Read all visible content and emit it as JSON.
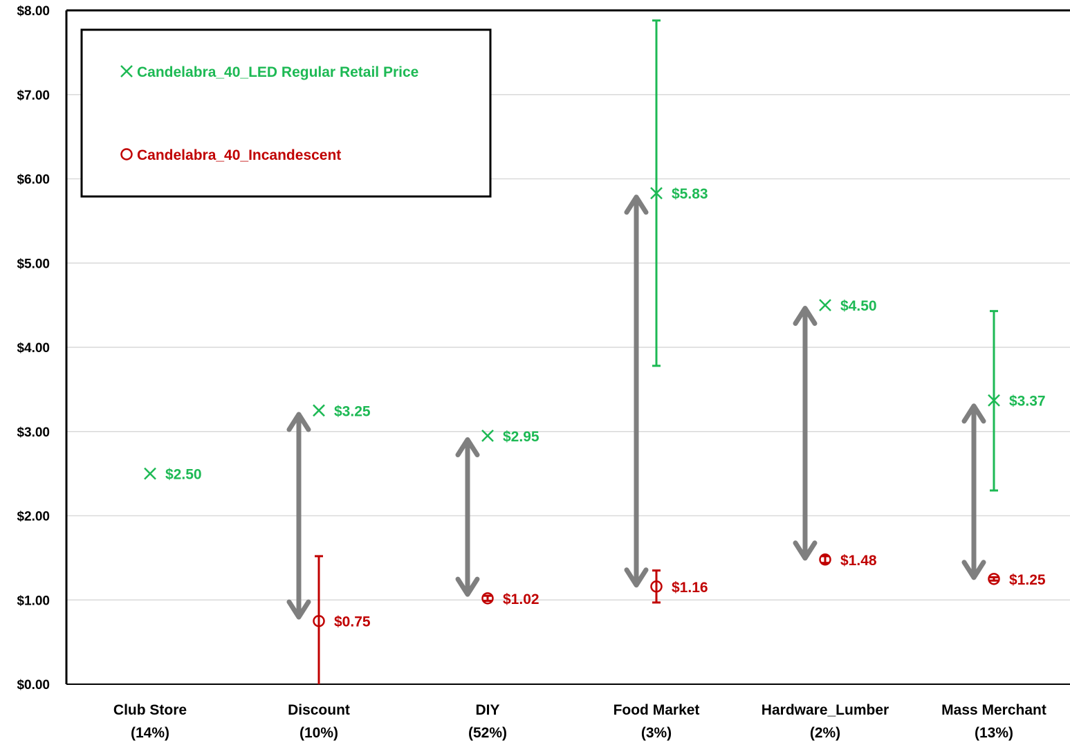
{
  "chart_data": {
    "type": "scatter",
    "ylim": [
      0,
      8
    ],
    "y_ticks": [
      "$0.00",
      "$1.00",
      "$2.00",
      "$3.00",
      "$4.00",
      "$5.00",
      "$6.00",
      "$7.00",
      "$8.00"
    ],
    "grid": true,
    "legend_position": "top-left",
    "categories": [
      {
        "name": "Club Store",
        "share": "(14%)"
      },
      {
        "name": "Discount",
        "share": "(10%)"
      },
      {
        "name": "DIY",
        "share": "(52%)"
      },
      {
        "name": "Food Market",
        "share": "(3%)"
      },
      {
        "name": "Hardware_Lumber",
        "share": "(2%)"
      },
      {
        "name": "Mass Merchant",
        "share": "(13%)"
      }
    ],
    "series": [
      {
        "name": "Candelabra_40_LED Regular Retail Price",
        "marker": "x",
        "color": "#1db954",
        "values": [
          2.5,
          3.25,
          2.95,
          5.83,
          4.5,
          3.37
        ],
        "labels": [
          "$2.50",
          "$3.25",
          "$2.95",
          "$5.83",
          "$4.50",
          "$3.37"
        ],
        "error_low": [
          null,
          null,
          null,
          3.78,
          null,
          2.3
        ],
        "error_high": [
          null,
          null,
          null,
          7.88,
          null,
          4.43
        ]
      },
      {
        "name": "Candelabra_40_Incandescent",
        "marker": "o",
        "color": "#c00000",
        "values": [
          null,
          0.75,
          1.02,
          1.16,
          1.48,
          1.25
        ],
        "labels": [
          null,
          "$0.75",
          "$1.02",
          "$1.16",
          "$1.48",
          "$1.25"
        ],
        "error_low": [
          null,
          0.0,
          0.99,
          0.97,
          1.44,
          1.23
        ],
        "error_high": [
          null,
          1.52,
          1.05,
          1.35,
          1.52,
          1.27
        ]
      }
    ],
    "arrows": [
      {
        "category": "Discount",
        "from": 0.78,
        "to": 3.22
      },
      {
        "category": "DIY",
        "from": 1.05,
        "to": 2.92
      },
      {
        "category": "Food Market",
        "from": 1.16,
        "to": 5.8
      },
      {
        "category": "Hardware_Lumber",
        "from": 1.48,
        "to": 4.48
      },
      {
        "category": "Mass Merchant",
        "from": 1.25,
        "to": 3.32
      }
    ],
    "arrow_color": "#7f7f7f"
  }
}
